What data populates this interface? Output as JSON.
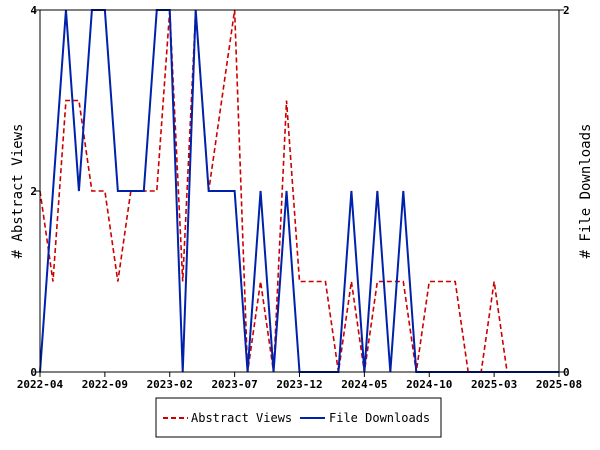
{
  "chart_data": {
    "type": "line",
    "title": "",
    "xlabel": "",
    "ylabel_left": "# Abstract Views",
    "ylabel_right": "# File Downloads",
    "x": [
      "2022-04",
      "2022-05",
      "2022-06",
      "2022-07",
      "2022-08",
      "2022-09",
      "2022-10",
      "2022-11",
      "2022-12",
      "2023-01",
      "2023-02",
      "2023-03",
      "2023-04",
      "2023-05",
      "2023-06",
      "2023-07",
      "2023-08",
      "2023-09",
      "2023-10",
      "2023-11",
      "2023-12",
      "2024-01",
      "2024-02",
      "2024-03",
      "2024-04",
      "2024-05",
      "2024-06",
      "2024-07",
      "2024-08",
      "2024-09",
      "2024-10",
      "2024-11",
      "2024-12",
      "2025-01",
      "2025-02",
      "2025-03",
      "2025-04",
      "2025-05",
      "2025-06",
      "2025-07",
      "2025-08"
    ],
    "x_tick_labels": [
      "2022-04",
      "2022-09",
      "2023-02",
      "2023-07",
      "2023-12",
      "2024-05",
      "2024-10",
      "2025-03",
      "2025-08"
    ],
    "y_left_ticks": [
      "0",
      "2",
      "4"
    ],
    "y_right_ticks": [
      "0",
      "2"
    ],
    "y_left_lim": [
      0,
      4
    ],
    "y_right_lim": [
      0,
      2
    ],
    "grid": false,
    "legend_position": "bottom",
    "series": [
      {
        "name": "Abstract Views",
        "axis": "left",
        "color": "#cc0000",
        "dash": "dashed",
        "values": [
          2,
          1,
          3,
          3,
          2,
          2,
          1,
          2,
          2,
          2,
          4,
          1,
          4,
          2,
          3,
          4,
          0,
          1,
          0,
          3,
          1,
          1,
          1,
          0,
          1,
          0,
          1,
          1,
          1,
          0,
          1,
          1,
          1,
          0,
          0,
          1,
          0,
          0,
          0,
          0,
          0
        ]
      },
      {
        "name": "File Downloads",
        "axis": "right",
        "color": "#0022aa",
        "dash": "solid",
        "values": [
          0,
          1,
          2,
          1,
          2,
          2,
          1,
          1,
          1,
          2,
          2,
          0,
          2,
          1,
          1,
          1,
          0,
          1,
          0,
          1,
          0,
          0,
          0,
          0,
          1,
          0,
          1,
          0,
          1,
          0,
          0,
          0,
          0,
          0,
          0,
          0,
          0,
          0,
          0,
          0,
          0
        ]
      }
    ]
  }
}
